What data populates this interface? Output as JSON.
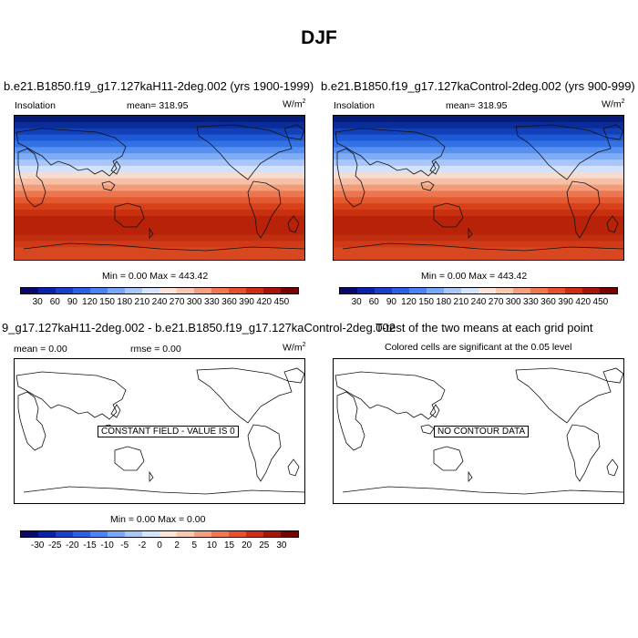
{
  "title": "DJF",
  "panels": [
    {
      "title": "b.e21.B1850.f19_g17.127kaH11-2deg.002 (yrs 1900-1999)",
      "left_label": "Insolation",
      "center_label": "mean= 318.95",
      "units_base": "W/m",
      "units_exp": "2",
      "minmax": "Min =   0.00 Max = 443.42"
    },
    {
      "title": "b.e21.B1850.f19_g17.127kaControl-2deg.002 (yrs 900-999)",
      "left_label": "Insolation",
      "center_label": "mean= 318.95",
      "units_base": "W/m",
      "units_exp": "2",
      "minmax": "Min =   0.00 Max = 443.42"
    },
    {
      "title": "9_g17.127kaH11-2deg.002 - b.e21.B1850.f19_g17.127kaControl-2deg.002",
      "left_label": "mean =   0.00",
      "center_label": "rmse =   0.00",
      "units_base": "W/m",
      "units_exp": "2",
      "note": "CONSTANT FIELD - VALUE IS 0",
      "minmax": "Min =   0.00 Max =   0.00"
    },
    {
      "title": "T-test of the two means at each grid point",
      "center_label": "Colored cells are significant at the 0.05 level",
      "note": "NO CONTOUR DATA"
    }
  ],
  "colorbar_top": {
    "labels": [
      "30",
      "60",
      "90",
      "120",
      "150",
      "180",
      "210",
      "240",
      "270",
      "300",
      "330",
      "360",
      "390",
      "420",
      "450"
    ],
    "colors": [
      "#08086e",
      "#0a22a8",
      "#1940cc",
      "#2a60e8",
      "#4a84f4",
      "#78a8f8",
      "#a8c8fa",
      "#d4e4fc",
      "#fce4d8",
      "#fac8b0",
      "#f5a07c",
      "#f07850",
      "#e8502c",
      "#d02c14",
      "#a81408",
      "#780202"
    ]
  },
  "colorbar_bottom": {
    "labels": [
      "-30",
      "-25",
      "-20",
      "-15",
      "-10",
      "-5",
      "-2",
      "0",
      "2",
      "5",
      "10",
      "15",
      "20",
      "25",
      "30"
    ],
    "colors": [
      "#08086e",
      "#0a22a8",
      "#1940cc",
      "#2a60e8",
      "#4a84f4",
      "#78a8f8",
      "#a8c8fa",
      "#d4e4fc",
      "#fce4d8",
      "#fac8b0",
      "#f5a07c",
      "#f07850",
      "#e8502c",
      "#d02c14",
      "#a81408",
      "#780202"
    ]
  },
  "insolation_band_colors": [
    "#071c78",
    "#0b2d9a",
    "#1240b8",
    "#1e58d4",
    "#3472e4",
    "#5690f0",
    "#80acf6",
    "#a8c6fa",
    "#d2e2fc",
    "#f6dcd0",
    "#f6c0a6",
    "#f29c7a",
    "#ec7650",
    "#e45a30",
    "#d8401a",
    "#c83010",
    "#b82208",
    "#b82208",
    "#b82208",
    "#c03010",
    "#d03a18",
    "#d84820",
    "#d84820"
  ]
}
